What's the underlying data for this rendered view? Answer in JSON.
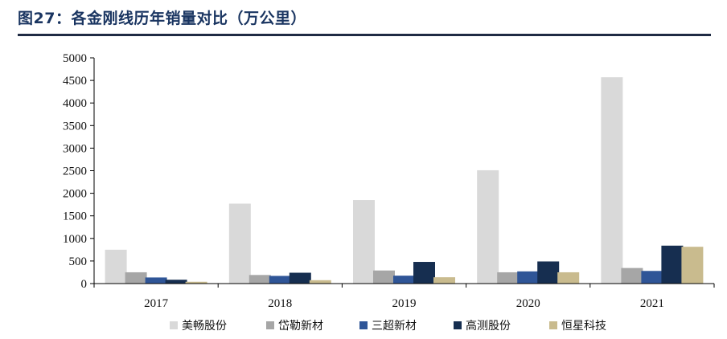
{
  "title": "图27：各金刚线历年销量对比（万公里）",
  "chart_data": {
    "type": "bar",
    "title": "图27：各金刚线历年销量对比（万公里）",
    "xlabel": "",
    "ylabel": "",
    "categories": [
      "2017",
      "2018",
      "2019",
      "2020",
      "2021"
    ],
    "series": [
      {
        "name": "美畅股份",
        "color": "#d9d9d9",
        "values": [
          750,
          1770,
          1850,
          2510,
          4570
        ]
      },
      {
        "name": "岱勒新材",
        "color": "#a6a6a6",
        "values": [
          250,
          190,
          290,
          250,
          345
        ]
      },
      {
        "name": "三超新材",
        "color": "#2f5597",
        "values": [
          135,
          170,
          175,
          270,
          280
        ]
      },
      {
        "name": "高测股份",
        "color": "#162e50",
        "values": [
          85,
          240,
          480,
          490,
          840
        ]
      },
      {
        "name": "恒星科技",
        "color": "#c9bb8e",
        "values": [
          40,
          75,
          140,
          250,
          815
        ]
      }
    ],
    "yticks": [
      0,
      500,
      1000,
      1500,
      2000,
      2500,
      3000,
      3500,
      4000,
      4500,
      5000
    ],
    "ylim": [
      0,
      5000
    ],
    "grid": false,
    "legend": "bottom"
  }
}
